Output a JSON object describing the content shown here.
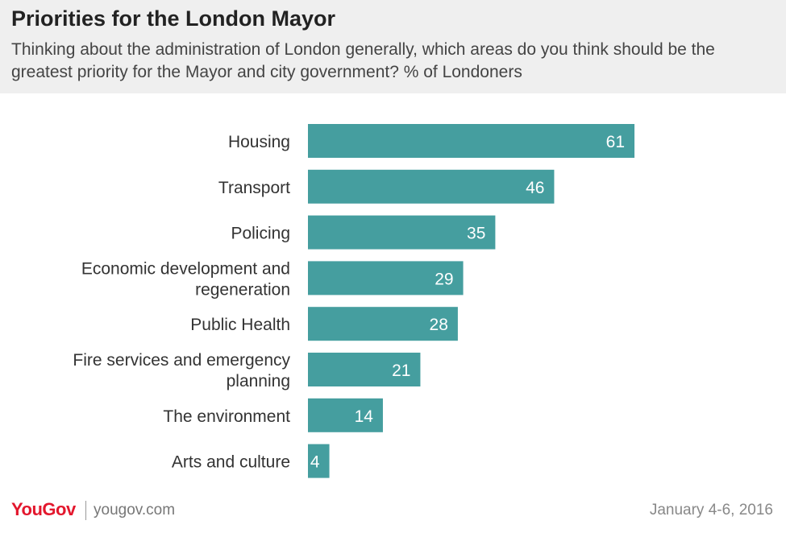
{
  "header": {
    "title": "Priorities for the London Mayor",
    "subtitle": "Thinking about the administration of London generally, which areas do you think should be the greatest priority for the Mayor and city government? % of Londoners"
  },
  "footer": {
    "brand": "YouGov",
    "site": "yougov.com",
    "date": "January 4-6, 2016"
  },
  "colors": {
    "bar": "#459e9f",
    "header_bg": "#efefef",
    "brand": "#e3172d"
  },
  "chart_data": {
    "type": "bar",
    "orientation": "horizontal",
    "categories": [
      [
        "Housing"
      ],
      [
        "Transport"
      ],
      [
        "Policing"
      ],
      [
        "Economic development and",
        "regeneration"
      ],
      [
        "Public Health"
      ],
      [
        "Fire services and emergency",
        "planning"
      ],
      [
        "The environment"
      ],
      [
        "Arts and culture"
      ]
    ],
    "values": [
      61,
      46,
      35,
      29,
      28,
      21,
      14,
      4
    ],
    "xlim": [
      0,
      100
    ],
    "grid": false,
    "legend": "none"
  }
}
